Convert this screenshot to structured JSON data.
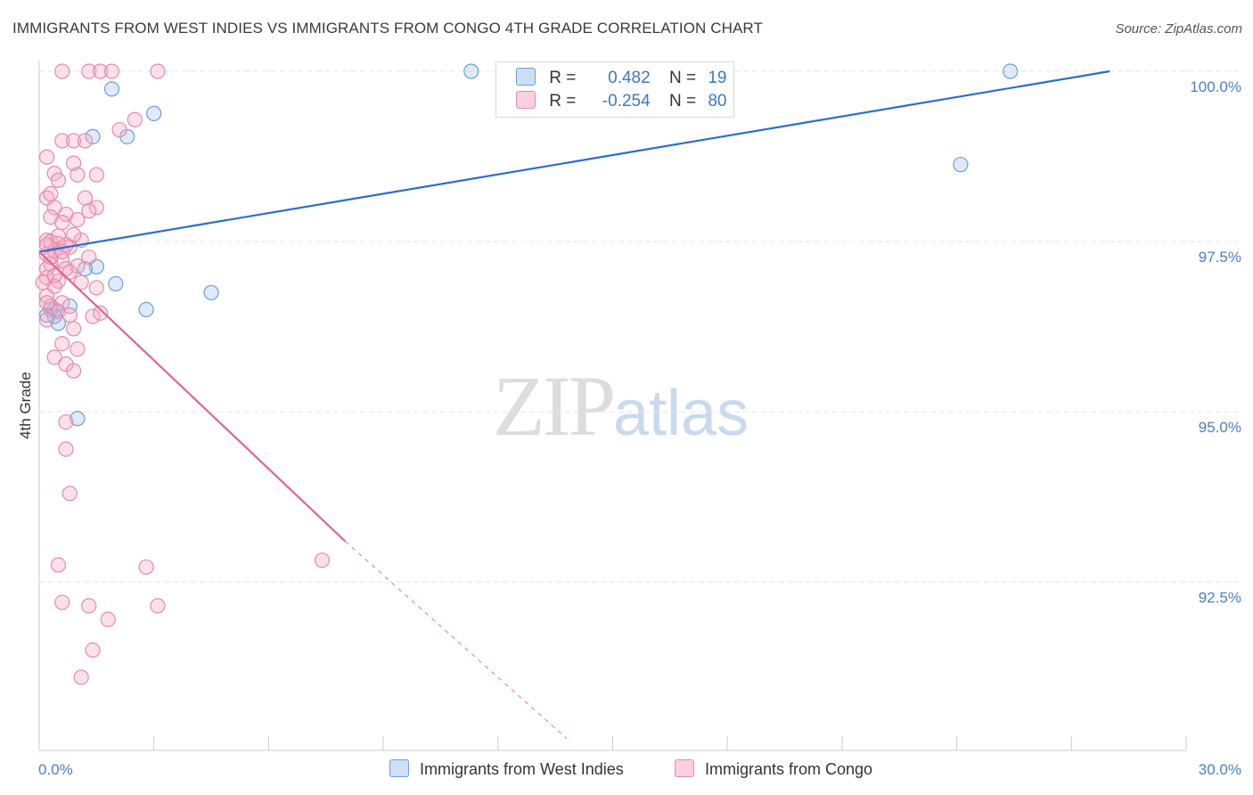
{
  "chart_data": {
    "type": "scatter",
    "title": "IMMIGRANTS FROM WEST INDIES VS IMMIGRANTS FROM CONGO 4TH GRADE CORRELATION CHART",
    "source": "Source: ZipAtlas.com",
    "ylabel": "4th Grade",
    "xlabel": "",
    "xlim": [
      0,
      30
    ],
    "ylim": [
      90.2,
      100.4
    ],
    "x_tick_labels": [
      "0.0%",
      "30.0%"
    ],
    "y_ticks": [
      {
        "value": 100.0,
        "label": "100.0%"
      },
      {
        "value": 97.5,
        "label": "97.5%"
      },
      {
        "value": 95.0,
        "label": "95.0%"
      },
      {
        "value": 92.5,
        "label": "92.5%"
      }
    ],
    "watermark": {
      "main": "ZIP",
      "accent": "atlas"
    },
    "legend": [
      {
        "r_label": "R =",
        "r_value": "0.482",
        "n_label": "N =",
        "n_value": "19"
      },
      {
        "r_label": "R =",
        "r_value": "-0.254",
        "n_label": "N =",
        "n_value": "80"
      }
    ],
    "series": [
      {
        "name": "Immigrants from West Indies",
        "color": "#6a9fdc",
        "fill": "rgba(164,196,240,0.35)",
        "line_color": "#2a6ecb",
        "trend": {
          "x0": 0,
          "y0": 97.35,
          "x1": 28,
          "y1": 100.0
        },
        "points": [
          [
            1.9,
            99.74
          ],
          [
            2.3,
            99.04
          ],
          [
            3.0,
            99.38
          ],
          [
            1.4,
            99.04
          ],
          [
            11.3,
            100.0
          ],
          [
            25.4,
            100.0
          ],
          [
            24.1,
            98.63
          ],
          [
            1.5,
            97.13
          ],
          [
            2.0,
            96.88
          ],
          [
            4.5,
            96.75
          ],
          [
            0.4,
            96.5
          ],
          [
            0.8,
            96.55
          ],
          [
            0.4,
            96.4
          ],
          [
            0.3,
            96.5
          ],
          [
            0.5,
            96.3
          ],
          [
            2.8,
            96.5
          ],
          [
            1.0,
            94.9
          ],
          [
            1.2,
            97.1
          ],
          [
            0.2,
            96.42
          ]
        ]
      },
      {
        "name": "Immigrants from Congo",
        "color": "#e48aa8",
        "fill": "rgba(245,170,195,0.35)",
        "line_color": "#e06590",
        "trend": {
          "x0": 0,
          "y0": 97.35,
          "x1": 8.0,
          "y1": 93.1
        },
        "trend_dash": {
          "x0": 8.0,
          "y0": 93.1,
          "x1": 13.8,
          "y1": 90.2
        },
        "points": [
          [
            0.6,
            100.0
          ],
          [
            1.3,
            100.0
          ],
          [
            1.6,
            100.0
          ],
          [
            1.9,
            100.0
          ],
          [
            3.1,
            100.0
          ],
          [
            2.1,
            99.14
          ],
          [
            2.5,
            99.29
          ],
          [
            0.6,
            98.98
          ],
          [
            0.9,
            98.98
          ],
          [
            1.2,
            98.98
          ],
          [
            0.2,
            98.74
          ],
          [
            0.9,
            98.65
          ],
          [
            0.4,
            98.5
          ],
          [
            1.0,
            98.48
          ],
          [
            1.5,
            98.48
          ],
          [
            0.2,
            98.14
          ],
          [
            1.2,
            98.14
          ],
          [
            0.4,
            98.0
          ],
          [
            1.5,
            98.0
          ],
          [
            0.7,
            97.9
          ],
          [
            0.3,
            97.86
          ],
          [
            1.0,
            97.82
          ],
          [
            0.6,
            97.78
          ],
          [
            0.2,
            97.52
          ],
          [
            1.1,
            97.52
          ],
          [
            0.5,
            97.47
          ],
          [
            0.8,
            97.42
          ],
          [
            0.4,
            97.36
          ],
          [
            0.2,
            97.31
          ],
          [
            1.3,
            97.27
          ],
          [
            0.6,
            97.22
          ],
          [
            0.3,
            97.17
          ],
          [
            0.7,
            97.1
          ],
          [
            1.0,
            97.14
          ],
          [
            0.2,
            96.97
          ],
          [
            0.5,
            96.92
          ],
          [
            0.4,
            96.84
          ],
          [
            1.5,
            96.82
          ],
          [
            0.2,
            96.7
          ],
          [
            0.6,
            96.6
          ],
          [
            0.3,
            96.55
          ],
          [
            0.5,
            96.47
          ],
          [
            0.8,
            96.42
          ],
          [
            1.4,
            96.4
          ],
          [
            0.2,
            96.35
          ],
          [
            0.9,
            96.22
          ],
          [
            0.6,
            96.0
          ],
          [
            1.0,
            95.92
          ],
          [
            0.4,
            95.8
          ],
          [
            0.7,
            95.7
          ],
          [
            0.9,
            95.6
          ],
          [
            0.7,
            94.85
          ],
          [
            0.7,
            94.45
          ],
          [
            0.8,
            93.8
          ],
          [
            0.5,
            92.75
          ],
          [
            2.8,
            92.72
          ],
          [
            7.4,
            92.82
          ],
          [
            0.6,
            92.2
          ],
          [
            1.3,
            92.15
          ],
          [
            3.1,
            92.15
          ],
          [
            1.8,
            91.95
          ],
          [
            1.4,
            91.5
          ],
          [
            1.1,
            91.1
          ],
          [
            0.3,
            97.5
          ],
          [
            0.8,
            97.05
          ],
          [
            0.5,
            97.58
          ],
          [
            0.2,
            97.1
          ],
          [
            1.6,
            96.45
          ],
          [
            0.3,
            97.27
          ],
          [
            0.6,
            97.35
          ],
          [
            0.1,
            96.9
          ],
          [
            0.4,
            97.0
          ],
          [
            0.9,
            97.6
          ],
          [
            0.2,
            96.6
          ],
          [
            1.1,
            96.9
          ],
          [
            0.3,
            98.2
          ],
          [
            0.5,
            98.4
          ],
          [
            1.3,
            97.95
          ],
          [
            0.7,
            97.45
          ],
          [
            0.2,
            97.45
          ]
        ]
      }
    ]
  }
}
